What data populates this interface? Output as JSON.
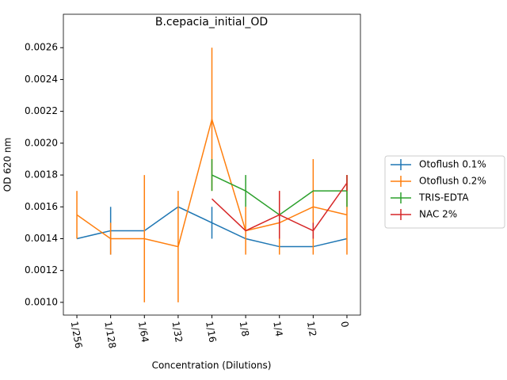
{
  "chart_data": {
    "type": "line",
    "title": "B.cepacia_initial_OD",
    "xlabel": "Concentration (Dilutions)",
    "ylabel": "OD 620 nm",
    "categories": [
      "1/256",
      "1/128",
      "1/64",
      "1/32",
      "1/16",
      "1/8",
      "1/4",
      "1/2",
      "0"
    ],
    "series": [
      {
        "name": "Otoflush 0.1%",
        "color": "#1f77b4",
        "values": [
          0.0014,
          0.00145,
          0.00145,
          0.0016,
          0.0015,
          0.0014,
          0.00135,
          0.00135,
          0.0014
        ],
        "errors": [
          0,
          0.00015,
          0,
          0,
          0.0001,
          0,
          0,
          0,
          0
        ]
      },
      {
        "name": "Otoflush 0.2%",
        "color": "#ff7f0e",
        "values": [
          0.00155,
          0.0014,
          0.0014,
          0.00135,
          0.00215,
          0.00145,
          0.0015,
          0.0016,
          0.00155
        ],
        "errors": [
          0.00015,
          0.0001,
          0.0004,
          0.00035,
          0.00045,
          0.00015,
          0.0002,
          0.0003,
          0.00025
        ]
      },
      {
        "name": "TRIS-EDTA",
        "color": "#2ca02c",
        "values": [
          null,
          null,
          null,
          null,
          0.0018,
          0.0017,
          0.00155,
          0.0017,
          0.0017
        ],
        "errors": [
          null,
          null,
          null,
          null,
          0.0001,
          0.0001,
          0,
          0,
          0.0001
        ]
      },
      {
        "name": "NAC 2%",
        "color": "#d62728",
        "values": [
          null,
          null,
          null,
          null,
          0.00165,
          0.00145,
          0.00155,
          0.00145,
          0.00175
        ],
        "errors": [
          null,
          null,
          null,
          null,
          0,
          0,
          0.00015,
          5e-05,
          5e-05
        ]
      }
    ],
    "ylim": [
      0.00092,
      0.00281
    ],
    "yticks": [
      {
        "value": 0.001,
        "label": "0.0010"
      },
      0.0012,
      0.0014,
      0.0016,
      0.0018,
      {
        "value": 0.002,
        "label": "0.0020"
      },
      0.0022,
      0.0024,
      0.0026
    ],
    "legend": "center right outside",
    "grid": false
  }
}
